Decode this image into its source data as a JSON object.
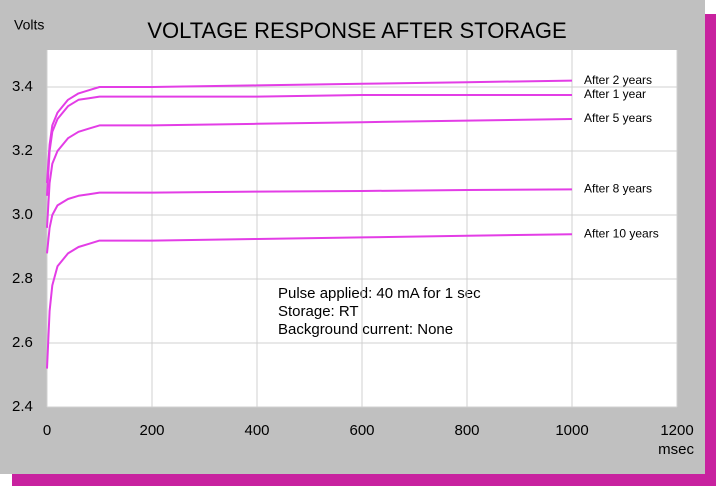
{
  "chart_data": {
    "type": "line",
    "title": "VOLTAGE RESPONSE  AFTER STORAGE",
    "y_label": "Volts",
    "x_label": "msec",
    "annotation": [
      "Pulse applied: 40 mA for 1 sec",
      "Storage: RT",
      "Background current: None"
    ],
    "x": [
      0,
      5,
      10,
      20,
      40,
      60,
      80,
      100,
      200,
      400,
      600,
      800,
      1000
    ],
    "series": [
      {
        "name": "After 2 years",
        "color": "#e33de6",
        "values": [
          3.1,
          3.22,
          3.28,
          3.32,
          3.36,
          3.38,
          3.39,
          3.4,
          3.4,
          3.405,
          3.41,
          3.415,
          3.42
        ]
      },
      {
        "name": "After 1 year",
        "color": "#e33de6",
        "values": [
          3.06,
          3.2,
          3.26,
          3.3,
          3.34,
          3.36,
          3.365,
          3.37,
          3.37,
          3.37,
          3.375,
          3.375,
          3.375
        ]
      },
      {
        "name": "After 5 years",
        "color": "#e33de6",
        "values": [
          2.96,
          3.1,
          3.16,
          3.2,
          3.24,
          3.26,
          3.27,
          3.28,
          3.28,
          3.285,
          3.29,
          3.295,
          3.3
        ]
      },
      {
        "name": "After 8 years",
        "color": "#e33de6",
        "values": [
          2.88,
          2.96,
          3.0,
          3.03,
          3.05,
          3.06,
          3.065,
          3.07,
          3.07,
          3.073,
          3.075,
          3.078,
          3.08
        ]
      },
      {
        "name": "After 10 years",
        "color": "#e33de6",
        "values": [
          2.52,
          2.7,
          2.78,
          2.84,
          2.88,
          2.9,
          2.91,
          2.92,
          2.92,
          2.925,
          2.93,
          2.935,
          2.94
        ]
      }
    ],
    "xlim": [
      0,
      1200
    ],
    "xticks": [
      0,
      200,
      400,
      600,
      800,
      1000,
      1200
    ],
    "ylim": [
      2.4,
      3.5
    ],
    "yticks": [
      2.4,
      2.6,
      2.8,
      {
        "value": 3,
        "label": "3.0"
      },
      3.2,
      3.4
    ],
    "grid": true
  }
}
